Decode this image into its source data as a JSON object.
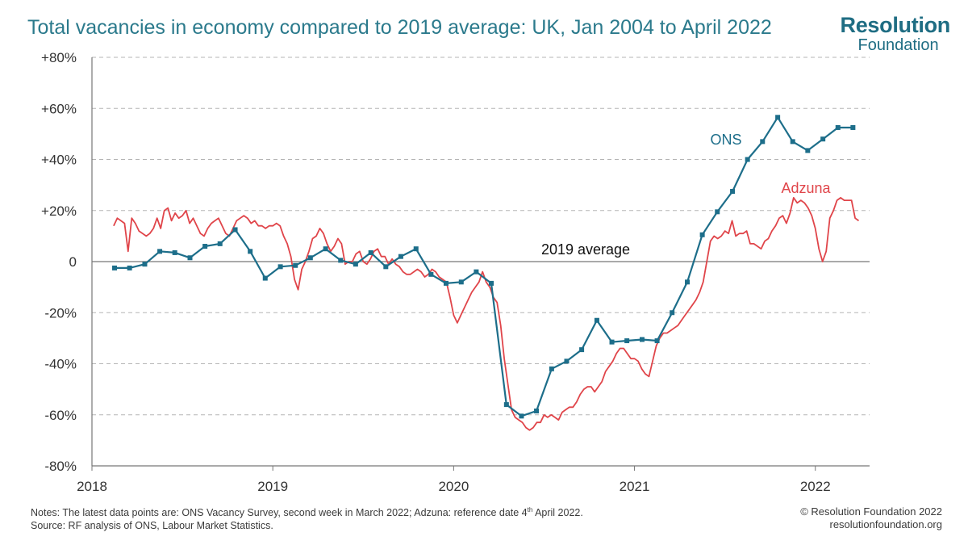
{
  "header": {
    "title": "Total vacancies in economy compared to 2019 average: UK, Jan 2004 to April 2022",
    "logo_line1": "Resolution",
    "logo_line2": "Foundation"
  },
  "footer": {
    "notes_prefix": "Notes:  The latest data points are: ONS Vacancy Survey, second week in March 2022; Adzuna: reference date 4",
    "notes_sup": "th",
    "notes_suffix": " April 2022.",
    "source": "Source: RF analysis of ONS, Labour Market Statistics.",
    "copyright": "© Resolution Foundation 2022",
    "website": "resolutionfoundation.org"
  },
  "colors": {
    "ons": "#1d6e8a",
    "adzuna": "#e0454a",
    "title": "#2b7a8c",
    "grid": "#b5b5b5",
    "axis": "#777777"
  },
  "chart_data": {
    "type": "line",
    "title": "Total vacancies in economy compared to 2019 average: UK, Jan 2004 to April 2022",
    "xlim": [
      2018.0,
      2022.3
    ],
    "ylim": [
      -80,
      80
    ],
    "x_ticks": [
      2018,
      2019,
      2020,
      2021,
      2022
    ],
    "x_tick_labels": [
      "2018",
      "2019",
      "2020",
      "2021",
      "2022"
    ],
    "y_ticks": [
      -80,
      -60,
      -40,
      -20,
      0,
      20,
      40,
      60,
      80
    ],
    "y_tick_labels": [
      "-80%",
      "-60%",
      "-40%",
      "-20%",
      "0",
      "+20%",
      "+40%",
      "+60%",
      "+80%"
    ],
    "grid": "horizontal dashed",
    "annotation": "2019 average",
    "series": [
      {
        "name": "ONS",
        "color": "#1d6e8a",
        "marker": "square",
        "x": [
          2018.125,
          2018.208,
          2018.292,
          2018.375,
          2018.458,
          2018.542,
          2018.625,
          2018.708,
          2018.792,
          2018.875,
          2018.958,
          2019.042,
          2019.125,
          2019.208,
          2019.292,
          2019.375,
          2019.458,
          2019.542,
          2019.625,
          2019.708,
          2019.792,
          2019.875,
          2019.958,
          2020.042,
          2020.125,
          2020.208,
          2020.292,
          2020.375,
          2020.458,
          2020.542,
          2020.625,
          2020.708,
          2020.792,
          2020.875,
          2020.958,
          2021.042,
          2021.125,
          2021.208,
          2021.292,
          2021.375,
          2021.458,
          2021.542,
          2021.625,
          2021.708,
          2021.792,
          2021.875,
          2021.958,
          2022.042,
          2022.125,
          2022.208
        ],
        "y": [
          -2.5,
          -2.5,
          -1,
          4,
          3.5,
          1.5,
          6,
          7,
          12.5,
          4,
          -6.5,
          -2,
          -1.5,
          1.5,
          5,
          0.5,
          -1,
          3.5,
          -2,
          2,
          5,
          -5,
          -8.5,
          -8,
          -4,
          -8.5,
          -56,
          -60.5,
          -58.5,
          -42,
          -39,
          -34.5,
          -23,
          -31.5,
          -31,
          -30.5,
          -31,
          -20,
          -8,
          10.5,
          19.5,
          27.5,
          40,
          47,
          56.5,
          47,
          43.5,
          48,
          52.5,
          52.5
        ]
      },
      {
        "name": "Adzuna",
        "color": "#e0454a",
        "x": [
          2018.12,
          2018.14,
          2018.16,
          2018.18,
          2018.2,
          2018.22,
          2018.24,
          2018.26,
          2018.28,
          2018.3,
          2018.32,
          2018.34,
          2018.36,
          2018.38,
          2018.4,
          2018.42,
          2018.44,
          2018.46,
          2018.48,
          2018.5,
          2018.52,
          2018.54,
          2018.56,
          2018.58,
          2018.6,
          2018.62,
          2018.64,
          2018.66,
          2018.68,
          2018.7,
          2018.72,
          2018.74,
          2018.76,
          2018.78,
          2018.8,
          2018.82,
          2018.84,
          2018.86,
          2018.88,
          2018.9,
          2018.92,
          2018.94,
          2018.96,
          2018.98,
          2019.0,
          2019.02,
          2019.04,
          2019.06,
          2019.08,
          2019.1,
          2019.12,
          2019.14,
          2019.16,
          2019.18,
          2019.2,
          2019.22,
          2019.24,
          2019.26,
          2019.28,
          2019.3,
          2019.32,
          2019.34,
          2019.36,
          2019.38,
          2019.4,
          2019.42,
          2019.44,
          2019.46,
          2019.48,
          2019.5,
          2019.52,
          2019.54,
          2019.56,
          2019.58,
          2019.6,
          2019.62,
          2019.64,
          2019.66,
          2019.68,
          2019.7,
          2019.72,
          2019.74,
          2019.76,
          2019.78,
          2019.8,
          2019.82,
          2019.84,
          2019.86,
          2019.88,
          2019.9,
          2019.92,
          2019.94,
          2019.96,
          2019.98,
          2020.0,
          2020.02,
          2020.04,
          2020.06,
          2020.08,
          2020.1,
          2020.12,
          2020.14,
          2020.16,
          2020.18,
          2020.2,
          2020.22,
          2020.24,
          2020.26,
          2020.28,
          2020.3,
          2020.32,
          2020.34,
          2020.36,
          2020.38,
          2020.4,
          2020.42,
          2020.44,
          2020.46,
          2020.48,
          2020.5,
          2020.52,
          2020.54,
          2020.56,
          2020.58,
          2020.6,
          2020.62,
          2020.64,
          2020.66,
          2020.68,
          2020.7,
          2020.72,
          2020.74,
          2020.76,
          2020.78,
          2020.8,
          2020.82,
          2020.84,
          2020.86,
          2020.88,
          2020.9,
          2020.92,
          2020.94,
          2020.96,
          2020.98,
          2021.0,
          2021.02,
          2021.04,
          2021.06,
          2021.08,
          2021.1,
          2021.12,
          2021.14,
          2021.16,
          2021.18,
          2021.2,
          2021.22,
          2021.24,
          2021.26,
          2021.28,
          2021.3,
          2021.32,
          2021.34,
          2021.36,
          2021.38,
          2021.4,
          2021.42,
          2021.44,
          2021.46,
          2021.48,
          2021.5,
          2021.52,
          2021.54,
          2021.56,
          2021.58,
          2021.6,
          2021.62,
          2021.64,
          2021.66,
          2021.68,
          2021.7,
          2021.72,
          2021.74,
          2021.76,
          2021.78,
          2021.8,
          2021.82,
          2021.84,
          2021.86,
          2021.88,
          2021.9,
          2021.92,
          2021.94,
          2021.96,
          2021.98,
          2022.0,
          2022.02,
          2022.04,
          2022.06,
          2022.08,
          2022.1,
          2022.12,
          2022.14,
          2022.16,
          2022.18,
          2022.2,
          2022.22,
          2022.24
        ],
        "y": [
          14,
          17,
          16,
          15,
          4,
          17,
          15,
          12,
          11,
          10,
          11,
          13,
          17,
          13,
          20,
          21,
          16,
          19,
          17,
          18,
          20,
          15,
          17,
          14,
          11,
          10,
          13,
          15,
          16,
          17,
          14,
          11,
          10,
          13,
          16,
          17,
          18,
          17,
          15,
          16,
          14,
          14,
          13,
          14,
          14,
          15,
          14,
          10,
          7,
          2,
          -7,
          -11,
          -3,
          0,
          4,
          9,
          10,
          13,
          11,
          7,
          4,
          6,
          9,
          7,
          -1,
          0,
          0,
          3,
          4,
          0,
          -1,
          1,
          4,
          5,
          2,
          2,
          -1,
          1,
          -1,
          -2,
          -4,
          -5,
          -5,
          -4,
          -3,
          -4,
          -6,
          -5,
          -3,
          -4,
          -6,
          -7,
          -8,
          -14,
          -21,
          -24,
          -21,
          -18,
          -15,
          -12,
          -10,
          -8,
          -4,
          -8,
          -10,
          -14,
          -16,
          -25,
          -38,
          -48,
          -58,
          -61,
          -62,
          -63,
          -65,
          -66,
          -65,
          -63,
          -63,
          -60,
          -61,
          -60,
          -61,
          -62,
          -59,
          -58,
          -57,
          -57,
          -55,
          -52,
          -50,
          -49,
          -49,
          -51,
          -49,
          -47,
          -43,
          -41,
          -39,
          -36,
          -34,
          -34,
          -36,
          -38,
          -38,
          -39,
          -42,
          -44,
          -45,
          -39,
          -33,
          -30,
          -28,
          -28,
          -27,
          -26,
          -25,
          -23,
          -21,
          -19,
          -17,
          -15,
          -12,
          -8,
          0,
          8,
          10,
          9,
          10,
          12,
          11,
          16,
          10,
          11,
          11,
          12,
          7,
          7,
          6,
          5,
          8,
          9,
          12,
          14,
          17,
          18,
          15,
          19,
          25,
          23,
          24,
          23,
          21,
          18,
          13,
          5,
          0,
          4,
          17,
          20,
          24,
          25,
          24,
          24,
          24,
          17,
          16
        ]
      }
    ]
  }
}
